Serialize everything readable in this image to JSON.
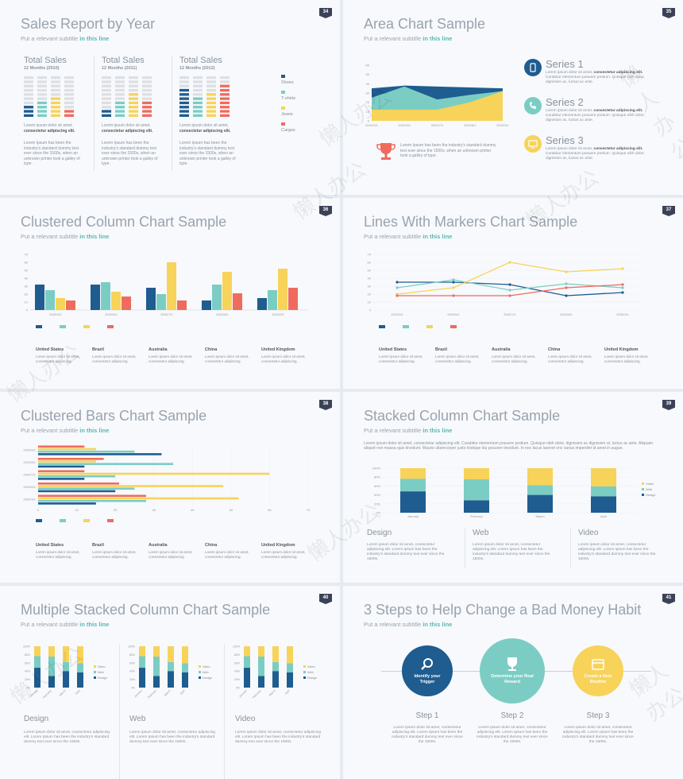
{
  "palette": {
    "navy": "#1f5c8f",
    "teal": "#7bcdc4",
    "yellow": "#f7d35a",
    "red": "#ef6b5e",
    "gray": "#dcdfe4"
  },
  "watermark": "懒人办公",
  "lorem": {
    "short": "Lorem ipsum dolor sit amet,",
    "bold": "consectetur adipiscing elit.",
    "industry": "Lorem Ipsum has been the industry's standard dummy text ever since the 1500s, when an unknown printer took a galley of type.",
    "series": "Curabitur elementum posuere pretium. Quisque nibh dolor, dignissim ac, luctus ac ante.",
    "region": "Lorem ipsum dolor sit amet, consectetur adipiscing.",
    "stack_intro": "Lorem ipsum dolor sit amet, consectetur adipiscing elit. Curabitur elementum posuere pretium. Quisque nibh dolor, dignissim ac dignissim ut, luctus ac ante. Aliquam aliquet non massa quis tincidunt. Mauris ullamcorper justo tristique dui posuere tincidunt. In nec lacus laoreet orci varius imperdiet id amet in augue.",
    "cat": "Lorem ipsum dolor sit amet, consectetur adipiscing elit. Lorem Ipsum has been the industry's standard dummy text ever since the 1500s."
  },
  "slides": [
    {
      "num": "34",
      "title": "Sales Report by Year",
      "subtitle_prefix": "Put a relevant subtitle",
      "subtitle_link": "in this line",
      "columns": [
        {
          "heading": "Total Sales",
          "period": "12 Months (2010)"
        },
        {
          "heading": "Total Sales",
          "period": "12 Months (2011)"
        },
        {
          "heading": "Total Sales",
          "period": "12 Months (2012)"
        }
      ],
      "legend": [
        "Shoes",
        "T-shirts",
        "Jeans",
        "Cargos"
      ],
      "bar_fill": [
        [
          3,
          4,
          5,
          2
        ],
        [
          2,
          4,
          6,
          4
        ],
        [
          7,
          5,
          6,
          8
        ]
      ]
    },
    {
      "num": "35",
      "title": "Area Chart Sample",
      "subtitle_prefix": "Put a relevant subtitle",
      "subtitle_link": "in this line",
      "chart_data": {
        "type": "area",
        "categories": [
          "2002/3/1",
          "2002/6/1",
          "2002/7/1",
          "2002/8/1",
          "2002/9/1"
        ],
        "ylim": [
          0,
          60
        ],
        "yticks": [
          0,
          10,
          20,
          30,
          40,
          50,
          60
        ],
        "series": [
          {
            "name": "Series 1",
            "values": [
              35,
              38,
              37,
              36,
              35
            ]
          },
          {
            "name": "Series 2",
            "values": [
              25,
              37,
              23,
              28,
              32
            ]
          },
          {
            "name": "Series 3",
            "values": [
              12,
              12,
              12,
              20,
              32
            ]
          }
        ]
      },
      "series_labels": [
        "Series 1",
        "Series 2",
        "Series 3"
      ],
      "bold_line": "consectetur adipiscing elit."
    },
    {
      "num": "36",
      "title": "Clustered Column Chart Sample",
      "subtitle_prefix": "Put a relevant subtitle",
      "subtitle_link": "in this line",
      "chart_data": {
        "type": "bar",
        "categories": [
          "2002/3/1",
          "2002/6/1",
          "2002/7/1",
          "2002/8/1",
          "2002/9/1"
        ],
        "ylim": [
          0,
          70
        ],
        "yticks": [
          0,
          10,
          20,
          30,
          40,
          50,
          60,
          70
        ],
        "series": [
          {
            "name": "Shoes",
            "values": [
              32,
              32,
              28,
              12,
              15
            ]
          },
          {
            "name": "T-shirts",
            "values": [
              25,
              35,
              20,
              32,
              25
            ]
          },
          {
            "name": "Jeans",
            "values": [
              15,
              23,
              60,
              48,
              52
            ]
          },
          {
            "name": "Cargos",
            "values": [
              12,
              17,
              12,
              21,
              28
            ]
          }
        ]
      },
      "regions": [
        "United States",
        "Brazil",
        "Australia",
        "China",
        "United Kingdom"
      ]
    },
    {
      "num": "37",
      "title": "Lines With Markers Chart Sample",
      "subtitle_prefix": "Put a relevant subtitle",
      "subtitle_link": "in this line",
      "chart_data": {
        "type": "line",
        "categories": [
          "2002/3/1",
          "2002/6/1",
          "2002/7/1",
          "2002/8/1",
          "2002/9/1"
        ],
        "ylim": [
          0,
          70
        ],
        "yticks": [
          0,
          10,
          20,
          30,
          40,
          50,
          60,
          70
        ],
        "series": [
          {
            "name": "Shoes",
            "values": [
              35,
              35,
              32,
              18,
              22
            ]
          },
          {
            "name": "T-shirts",
            "values": [
              28,
              38,
              25,
              33,
              28
            ]
          },
          {
            "name": "Jeans",
            "values": [
              20,
              28,
              60,
              48,
              52
            ]
          },
          {
            "name": "Cargos",
            "values": [
              18,
              18,
              18,
              28,
              32
            ]
          }
        ]
      },
      "regions": [
        "United States",
        "Brazil",
        "Australia",
        "China",
        "United Kingdom"
      ]
    },
    {
      "num": "38",
      "title": "Clustered Bars Chart Sample",
      "subtitle_prefix": "Put a relevant subtitle",
      "subtitle_link": "in this line",
      "chart_data": {
        "type": "bar",
        "orientation": "horizontal",
        "categories": [
          "2002/3/1",
          "2002/6/1",
          "2002/7/1",
          "2002/8/1",
          "2002/9/1"
        ],
        "xlim": [
          0,
          70
        ],
        "xticks": [
          0,
          10,
          20,
          30,
          40,
          50,
          60,
          70
        ],
        "series": [
          {
            "name": "Shoes",
            "values": [
              15,
              20,
              12,
              12,
              32
            ]
          },
          {
            "name": "T-shirts",
            "values": [
              28,
              25,
              20,
              35,
              25
            ]
          },
          {
            "name": "Jeans",
            "values": [
              52,
              48,
              60,
              15,
              15
            ]
          },
          {
            "name": "Cargos",
            "values": [
              28,
              21,
              12,
              17,
              12
            ]
          }
        ]
      },
      "regions": [
        "United States",
        "Brazil",
        "Australia",
        "China",
        "United Kingdom"
      ]
    },
    {
      "num": "39",
      "title": "Stacked Column Chart Sample",
      "subtitle_prefix": "Put a relevant subtitle",
      "subtitle_link": "in this line",
      "chart_data": {
        "type": "bar",
        "stacked": true,
        "percent": true,
        "categories": [
          "January",
          "February",
          "March",
          "April"
        ],
        "ylim": [
          0,
          100
        ],
        "yticks": [
          "0%",
          "20%",
          "40%",
          "60%",
          "80%",
          "100%"
        ],
        "series": [
          {
            "name": "Design",
            "values": [
              48,
              28,
              40,
              37
            ]
          },
          {
            "name": "Web",
            "values": [
              28,
              47,
              22,
              22
            ]
          },
          {
            "name": "Video",
            "values": [
              24,
              25,
              38,
              41
            ]
          }
        ]
      },
      "categories_text": [
        "Design",
        "Web",
        "Video"
      ]
    },
    {
      "num": "40",
      "title": "Multiple Stacked Column Chart Sample",
      "subtitle_prefix": "Put a relevant subtitle",
      "subtitle_link": "in this line",
      "chart_data": [
        {
          "type": "bar",
          "stacked": true,
          "percent": true,
          "categories": [
            "January",
            "February",
            "March",
            "April"
          ],
          "yticks": [
            "0%",
            "20%",
            "40%",
            "60%",
            "80%",
            "100%"
          ],
          "series": [
            {
              "name": "Design",
              "values": [
                48,
                28,
                40,
                37
              ]
            },
            {
              "name": "Web",
              "values": [
                28,
                47,
                22,
                22
              ]
            },
            {
              "name": "Video",
              "values": [
                24,
                25,
                38,
                41
              ]
            }
          ]
        },
        {
          "type": "bar",
          "stacked": true,
          "percent": true,
          "categories": [
            "January",
            "February",
            "March",
            "April"
          ],
          "yticks": [
            "0%",
            "20%",
            "40%",
            "60%",
            "80%",
            "100%"
          ],
          "series": [
            {
              "name": "Design",
              "values": [
                48,
                28,
                40,
                37
              ]
            },
            {
              "name": "Web",
              "values": [
                28,
                47,
                22,
                22
              ]
            },
            {
              "name": "Video",
              "values": [
                24,
                25,
                38,
                41
              ]
            }
          ]
        },
        {
          "type": "bar",
          "stacked": true,
          "percent": true,
          "categories": [
            "January",
            "February",
            "March",
            "April"
          ],
          "yticks": [
            "0%",
            "20%",
            "40%",
            "60%",
            "80%",
            "100%"
          ],
          "series": [
            {
              "name": "Design",
              "values": [
                48,
                28,
                40,
                37
              ]
            },
            {
              "name": "Web",
              "values": [
                28,
                47,
                22,
                22
              ]
            },
            {
              "name": "Video",
              "values": [
                24,
                25,
                38,
                41
              ]
            }
          ]
        }
      ],
      "categories_text": [
        "Design",
        "Web",
        "Video"
      ]
    },
    {
      "num": "41",
      "title": "3 Steps to Help Change a Bad Money Habit",
      "subtitle_prefix": "Put a relevant subtitle",
      "subtitle_link": "in this line",
      "steps": [
        {
          "circle_text": "Identify your Trigger",
          "label": "Step 1",
          "icon": "search-icon"
        },
        {
          "circle_text": "Determine your Real Reward",
          "label": "Step 2",
          "icon": "trophy-icon"
        },
        {
          "circle_text": "Create a New Routine",
          "label": "Step 3",
          "icon": "calendar-icon"
        }
      ]
    }
  ]
}
